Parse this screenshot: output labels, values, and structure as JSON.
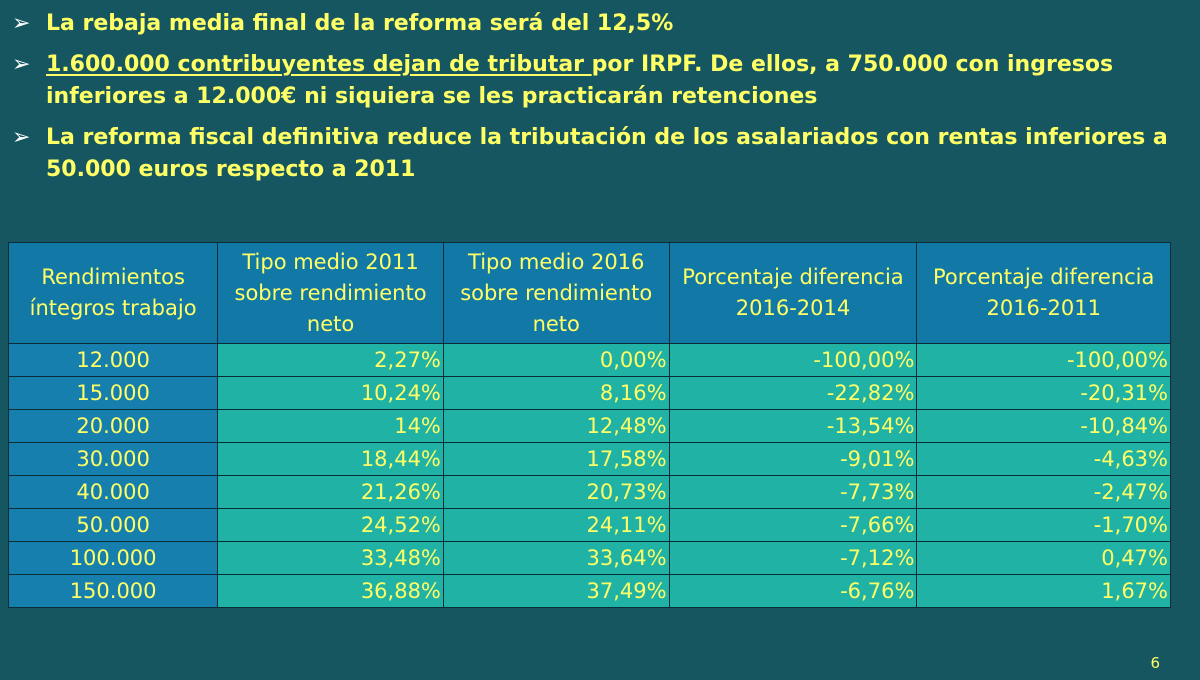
{
  "bullets": [
    {
      "underlined": "",
      "text": "La rebaja media final de la reforma será del 12,5%"
    },
    {
      "underlined": "1.600.000 contribuyentes dejan de tributar ",
      "text": "por IRPF. De ellos, a 750.000 con ingresos inferiores a 12.000€ ni siquiera se les practicarán retenciones"
    },
    {
      "underlined": "",
      "text": "La reforma fiscal definitiva reduce la tributación de los asalariados con rentas inferiores a 50.000 euros respecto a 2011"
    }
  ],
  "table": {
    "headers": [
      "Rendimientos íntegros trabajo",
      "Tipo medio 2011 sobre rendimiento neto",
      "Tipo medio 2016 sobre rendimiento neto",
      "Porcentaje diferencia 2016-2014",
      "Porcentaje diferencia 2016-2011"
    ],
    "rows": [
      [
        "12.000",
        "2,27%",
        "0,00%",
        "-100,00%",
        "-100,00%"
      ],
      [
        "15.000",
        "10,24%",
        "8,16%",
        "-22,82%",
        "-20,31%"
      ],
      [
        "20.000",
        "14%",
        "12,48%",
        "-13,54%",
        "-10,84%"
      ],
      [
        "30.000",
        "18,44%",
        "17,58%",
        "-9,01%",
        "-4,63%"
      ],
      [
        "40.000",
        "21,26%",
        "20,73%",
        "-7,73%",
        "-2,47%"
      ],
      [
        "50.000",
        "24,52%",
        "24,11%",
        "-7,66%",
        "-1,70%"
      ],
      [
        "100.000",
        "33,48%",
        "33,64%",
        "-7,12%",
        "0,47%"
      ],
      [
        "150.000",
        "36,88%",
        "37,49%",
        "-6,76%",
        "1,67%"
      ]
    ]
  },
  "page_number": "6",
  "colors": {
    "background": "#155660",
    "text_yellow": "#ffff66",
    "header_blue": "#1279a6",
    "first_col_blue": "#177fae",
    "cell_teal": "#20b2a4"
  }
}
